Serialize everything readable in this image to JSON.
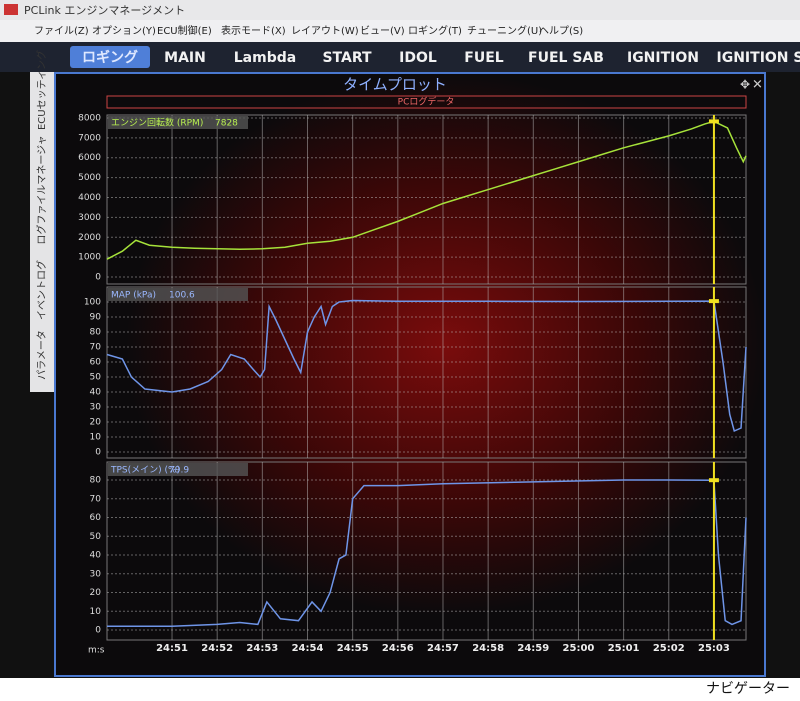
{
  "window": {
    "title": "PCLink エンジンマネージメント"
  },
  "menu": [
    "ファイル(Z)",
    "オプション(Y)",
    "ECU制御(E)",
    "表示モード(X)",
    "レイアウト(W)",
    "ビュー(V)",
    "ロギング(T)",
    "チューニング(U)",
    "ヘルプ(S)"
  ],
  "tabs": [
    "ロギング",
    "MAIN",
    "Lambda",
    "START",
    "IDOL",
    "FUEL",
    "FUEL SAB",
    "IGNITION",
    "IGNITION S"
  ],
  "side_tabs": [
    "ECUセッティング",
    "ログファイルマネージャ",
    "イベントログ",
    "パラメータ"
  ],
  "time_plot": {
    "title": "タイムプロット",
    "subtitle": "PCログデータ",
    "cursor_x": 63
  },
  "navigator": "ナビゲーター",
  "chart_data": [
    {
      "type": "line",
      "xlim": [
        49.56,
        63.71
      ],
      "ylim": [
        -350,
        8150
      ],
      "yticks": [
        0,
        1000,
        2000,
        3000,
        4000,
        5000,
        6000,
        7000,
        8000
      ],
      "readout": 7828,
      "x": [
        49.56,
        49.9,
        50.2,
        50.5,
        51,
        51.5,
        52,
        52.5,
        53,
        53.5,
        54,
        54.5,
        55,
        55.5,
        56,
        56.5,
        57,
        57.5,
        58,
        58.5,
        59,
        59.5,
        60,
        60.5,
        61,
        61.5,
        62,
        62.5,
        62.8,
        63,
        63.3,
        63.5,
        63.65,
        63.71
      ],
      "series": [
        {
          "name": "エンジン回転数 (RPM)",
          "color": "#a6e23a",
          "values": [
            900,
            1300,
            1850,
            1600,
            1500,
            1450,
            1420,
            1400,
            1420,
            1500,
            1700,
            1800,
            2000,
            2400,
            2800,
            3250,
            3700,
            4050,
            4400,
            4750,
            5100,
            5450,
            5800,
            6150,
            6500,
            6800,
            7100,
            7450,
            7700,
            7828,
            7500,
            6500,
            5800,
            6100
          ]
        }
      ]
    },
    {
      "type": "line",
      "xlim": [
        49.56,
        63.71
      ],
      "ylim": [
        -4,
        110
      ],
      "yticks": [
        0,
        10,
        20,
        30,
        40,
        50,
        60,
        70,
        80,
        90,
        100
      ],
      "readout": 100.6,
      "x": [
        49.56,
        49.9,
        50.1,
        50.4,
        51,
        51.4,
        51.8,
        52.1,
        52.3,
        52.6,
        52.8,
        52.95,
        53.05,
        53.15,
        53.3,
        53.5,
        53.7,
        53.85,
        54.0,
        54.15,
        54.3,
        54.4,
        54.55,
        54.7,
        55.0,
        56,
        58,
        60,
        62,
        63,
        63.2,
        63.35,
        63.45,
        63.6,
        63.71
      ],
      "series": [
        {
          "name": "MAP (kPa)",
          "color": "#6f95e8",
          "values": [
            65,
            62,
            50,
            42,
            40,
            42,
            47,
            55,
            65,
            62,
            55,
            50,
            55,
            97,
            88,
            75,
            62,
            53,
            80,
            90,
            97,
            85,
            97,
            100,
            101,
            100.5,
            100.5,
            100.3,
            100.5,
            100.6,
            60,
            25,
            14,
            16,
            70
          ]
        }
      ]
    },
    {
      "type": "line",
      "xlim": [
        49.56,
        63.71
      ],
      "ylim": [
        -5.3,
        89.6
      ],
      "yticks": [
        0,
        10,
        20,
        30,
        40,
        50,
        60,
        70,
        80
      ],
      "readout": 79.9,
      "xlabel": "m:s",
      "xticks": [
        {
          "value": 51,
          "label": "24:51"
        },
        {
          "value": 52,
          "label": "24:52"
        },
        {
          "value": 53,
          "label": "24:53"
        },
        {
          "value": 54,
          "label": "24:54"
        },
        {
          "value": 55,
          "label": "24:55"
        },
        {
          "value": 56,
          "label": "24:56"
        },
        {
          "value": 57,
          "label": "24:57"
        },
        {
          "value": 58,
          "label": "24:58"
        },
        {
          "value": 59,
          "label": "24:59"
        },
        {
          "value": 60,
          "label": "25:00"
        },
        {
          "value": 61,
          "label": "25:01"
        },
        {
          "value": 62,
          "label": "25:02"
        },
        {
          "value": 63,
          "label": "25:03"
        }
      ],
      "x": [
        49.56,
        51,
        52,
        52.5,
        52.9,
        53.1,
        53.4,
        53.8,
        54.1,
        54.3,
        54.5,
        54.7,
        54.85,
        55.0,
        55.25,
        56,
        57,
        59,
        61,
        62,
        63,
        63.1,
        63.25,
        63.4,
        63.6,
        63.71
      ],
      "series": [
        {
          "name": "TPS(メイン) (%)",
          "color": "#6f95e8",
          "values": [
            2,
            2,
            3,
            4,
            3,
            15,
            6,
            5,
            15,
            10,
            20,
            38,
            40,
            70,
            77,
            77,
            78,
            79,
            80,
            80,
            79.9,
            40,
            5,
            3,
            5,
            60
          ]
        }
      ]
    }
  ]
}
